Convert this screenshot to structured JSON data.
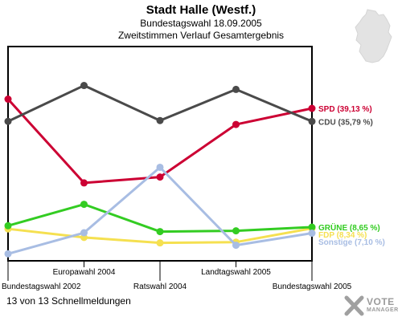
{
  "header": {
    "title": "Stadt Halle (Westf.)",
    "subtitle": "Bundestagswahl 18.09.2005",
    "chart_subtitle": "Zweitstimmen Verlauf Gesamtergebnis"
  },
  "footer": {
    "note": "13 von 13 Schnellmeldungen"
  },
  "logo": {
    "line1": "VOTE",
    "line2": "MANAGER"
  },
  "chart_data": {
    "type": "line",
    "title": "Stadt Halle (Westf.)",
    "subtitle": "Zweitstimmen Verlauf Gesamtergebnis",
    "x": [
      "Bundestagswahl 2002",
      "Europawahl 2004",
      "Ratswahl 2004",
      "Landtagswahl 2005",
      "Bundestagswahl 2005"
    ],
    "ylim": [
      0,
      55
    ],
    "grid": false,
    "legend": "right",
    "series": [
      {
        "name": "SPD (39,13 %)",
        "color": "#cc0033",
        "values": [
          41.5,
          20.0,
          21.5,
          35.0,
          39.13
        ]
      },
      {
        "name": "CDU (35,79 %)",
        "color": "#4a4a4a",
        "values": [
          35.8,
          45.0,
          36.0,
          44.0,
          35.79
        ]
      },
      {
        "name": "FDP (8,34 %)",
        "color": "#f5e050",
        "values": [
          8.2,
          6.0,
          4.6,
          4.8,
          8.34
        ]
      },
      {
        "name": "GRÜNE (8,65 %)",
        "color": "#33cc22",
        "values": [
          9.0,
          14.5,
          7.5,
          7.7,
          8.65
        ]
      },
      {
        "name": "Sonstige (7,10 %)",
        "color": "#a8bde3",
        "values": [
          1.8,
          7.2,
          24.0,
          4.0,
          7.1
        ]
      }
    ]
  }
}
